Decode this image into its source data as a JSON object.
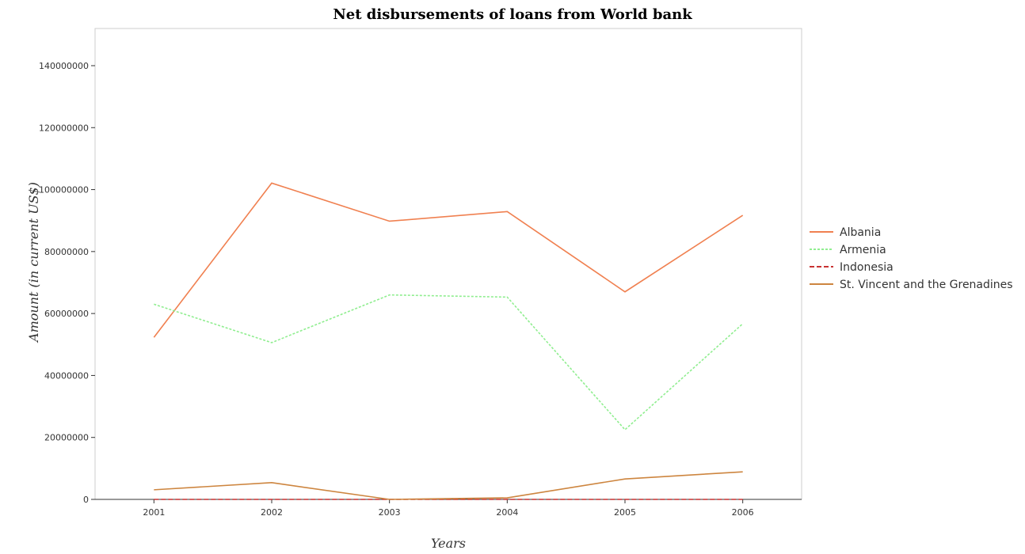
{
  "chart_data": {
    "type": "line",
    "title": "Net disbursements of loans from World bank",
    "xlabel": "Years",
    "ylabel": "Amount (in current US$)",
    "x": [
      "2001",
      "2002",
      "2003",
      "2004",
      "2005",
      "2006"
    ],
    "ylim": [
      0,
      152000000
    ],
    "yticks": [
      0,
      20000000,
      40000000,
      60000000,
      80000000,
      100000000,
      120000000,
      140000000
    ],
    "ytick_labels": [
      "0",
      "20000000",
      "40000000",
      "60000000",
      "80000000",
      "100000000",
      "120000000",
      "140000000"
    ],
    "legend_position": "right",
    "series": [
      {
        "name": "Albania",
        "color": "#f08050",
        "values": [
          52300000,
          102100000,
          89800000,
          92900000,
          67000000,
          91700000
        ]
      },
      {
        "name": "Armenia",
        "color": "#90ee90",
        "values": [
          63000000,
          50600000,
          66000000,
          65300000,
          22500000,
          56700000
        ]
      },
      {
        "name": "Indonesia",
        "color": "#c83232",
        "values": [
          0,
          0,
          0,
          0,
          0,
          0
        ]
      },
      {
        "name": "St. Vincent and the Grenadines",
        "color": "#cd853f",
        "values": [
          3100000,
          5400000,
          0,
          500000,
          6600000,
          8900000
        ]
      }
    ]
  }
}
